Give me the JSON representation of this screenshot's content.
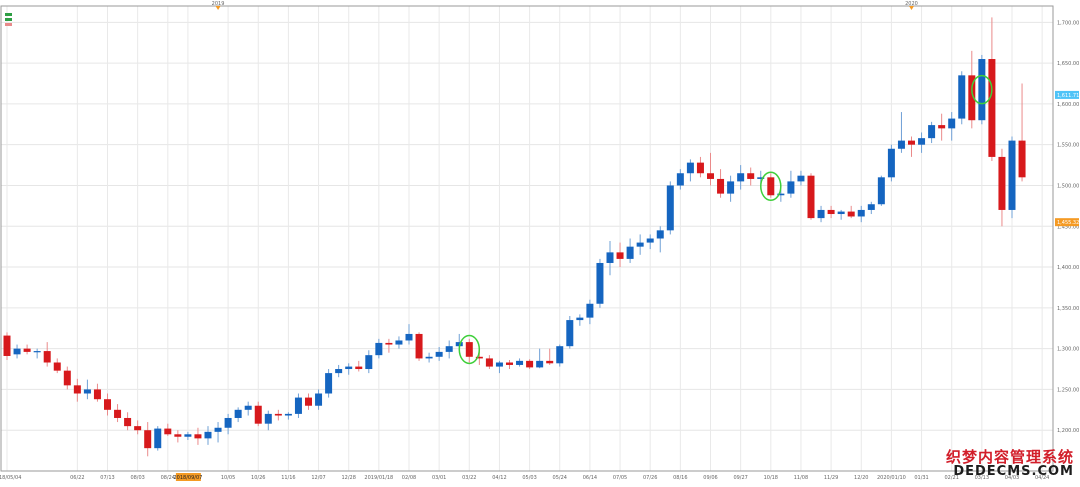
{
  "chart_data": {
    "type": "candlestick",
    "ylim": [
      1150,
      1720
    ],
    "y_ticks": [
      1200,
      1250,
      1300,
      1350,
      1400,
      1450,
      1500,
      1550,
      1600,
      1650,
      1700
    ],
    "y_tick_labels": [
      "1,200.00",
      "1,250.00",
      "1,300.00",
      "1,350.00",
      "1,400.00",
      "1,450.00",
      "1,500.00",
      "1,550.00",
      "1,600.00",
      "1,650.00",
      "1,700.00"
    ],
    "grid": true,
    "years": [
      {
        "label": "2019",
        "candle_index": 21
      },
      {
        "label": "2020",
        "candle_index": 90
      }
    ],
    "x_ticks": [
      {
        "label": "2018/05/04",
        "i": 0
      },
      {
        "label": "06/22",
        "i": 7
      },
      {
        "label": "07/13",
        "i": 10
      },
      {
        "label": "08/03",
        "i": 13
      },
      {
        "label": "08/24",
        "i": 16
      },
      {
        "label": "2018/09/07",
        "i": 18,
        "highlight": true
      },
      {
        "label": "10/05",
        "i": 22
      },
      {
        "label": "10/26",
        "i": 25
      },
      {
        "label": "11/16",
        "i": 28
      },
      {
        "label": "12/07",
        "i": 31
      },
      {
        "label": "12/28",
        "i": 34
      },
      {
        "label": "2019/01/18",
        "i": 37
      },
      {
        "label": "02/08",
        "i": 40
      },
      {
        "label": "03/01",
        "i": 43
      },
      {
        "label": "03/22",
        "i": 46
      },
      {
        "label": "04/12",
        "i": 49
      },
      {
        "label": "05/03",
        "i": 52
      },
      {
        "label": "05/24",
        "i": 55
      },
      {
        "label": "06/14",
        "i": 58
      },
      {
        "label": "07/05",
        "i": 61
      },
      {
        "label": "07/26",
        "i": 64
      },
      {
        "label": "08/16",
        "i": 67
      },
      {
        "label": "09/06",
        "i": 70
      },
      {
        "label": "09/27",
        "i": 73
      },
      {
        "label": "10/18",
        "i": 76
      },
      {
        "label": "11/08",
        "i": 79
      },
      {
        "label": "11/29",
        "i": 82
      },
      {
        "label": "12/20",
        "i": 85
      },
      {
        "label": "2020/01/10",
        "i": 88
      },
      {
        "label": "01/31",
        "i": 91
      },
      {
        "label": "02/21",
        "i": 94
      },
      {
        "label": "03/13",
        "i": 97
      },
      {
        "label": "04/03",
        "i": 100
      },
      {
        "label": "04/24",
        "i": 103
      }
    ],
    "price_tags": [
      {
        "label": "1,611.71",
        "value": 1611,
        "color": "#4fc3f7"
      },
      {
        "label": "1,455.32",
        "value": 1455,
        "color": "#f59a23"
      }
    ],
    "circled_candles": [
      46,
      76,
      97
    ],
    "colors": {
      "up": "#1565c0",
      "down": "#d7191c"
    },
    "candles": [
      [
        1316,
        1320,
        1286,
        1291
      ],
      [
        1293,
        1305,
        1288,
        1300
      ],
      [
        1300,
        1305,
        1293,
        1296
      ],
      [
        1296,
        1300,
        1288,
        1297
      ],
      [
        1297,
        1308,
        1278,
        1283
      ],
      [
        1283,
        1288,
        1270,
        1273
      ],
      [
        1273,
        1278,
        1250,
        1255
      ],
      [
        1255,
        1263,
        1235,
        1245
      ],
      [
        1245,
        1262,
        1238,
        1250
      ],
      [
        1250,
        1257,
        1235,
        1238
      ],
      [
        1238,
        1245,
        1218,
        1225
      ],
      [
        1225,
        1232,
        1210,
        1215
      ],
      [
        1215,
        1222,
        1200,
        1205
      ],
      [
        1205,
        1212,
        1195,
        1200
      ],
      [
        1200,
        1210,
        1168,
        1178
      ],
      [
        1178,
        1205,
        1175,
        1202
      ],
      [
        1202,
        1208,
        1193,
        1195
      ],
      [
        1195,
        1200,
        1185,
        1192
      ],
      [
        1192,
        1198,
        1188,
        1195
      ],
      [
        1195,
        1203,
        1182,
        1190
      ],
      [
        1190,
        1205,
        1182,
        1198
      ],
      [
        1198,
        1210,
        1185,
        1203
      ],
      [
        1203,
        1220,
        1195,
        1215
      ],
      [
        1215,
        1228,
        1210,
        1225
      ],
      [
        1225,
        1235,
        1218,
        1230
      ],
      [
        1230,
        1235,
        1205,
        1208
      ],
      [
        1208,
        1224,
        1200,
        1220
      ],
      [
        1220,
        1225,
        1212,
        1218
      ],
      [
        1218,
        1222,
        1213,
        1220
      ],
      [
        1220,
        1245,
        1215,
        1240
      ],
      [
        1240,
        1245,
        1225,
        1230
      ],
      [
        1230,
        1250,
        1225,
        1245
      ],
      [
        1245,
        1275,
        1240,
        1270
      ],
      [
        1270,
        1280,
        1265,
        1275
      ],
      [
        1275,
        1282,
        1268,
        1278
      ],
      [
        1278,
        1285,
        1272,
        1275
      ],
      [
        1275,
        1298,
        1270,
        1292
      ],
      [
        1292,
        1312,
        1288,
        1307
      ],
      [
        1307,
        1312,
        1295,
        1305
      ],
      [
        1305,
        1315,
        1300,
        1310
      ],
      [
        1310,
        1330,
        1305,
        1318
      ],
      [
        1318,
        1320,
        1285,
        1288
      ],
      [
        1288,
        1295,
        1283,
        1290
      ],
      [
        1290,
        1302,
        1285,
        1296
      ],
      [
        1296,
        1310,
        1288,
        1303
      ],
      [
        1303,
        1318,
        1298,
        1308
      ],
      [
        1308,
        1312,
        1283,
        1290
      ],
      [
        1290,
        1300,
        1280,
        1288
      ],
      [
        1288,
        1292,
        1275,
        1278
      ],
      [
        1278,
        1285,
        1270,
        1283
      ],
      [
        1283,
        1286,
        1275,
        1280
      ],
      [
        1280,
        1288,
        1278,
        1285
      ],
      [
        1285,
        1287,
        1275,
        1277
      ],
      [
        1277,
        1300,
        1276,
        1285
      ],
      [
        1285,
        1300,
        1280,
        1282
      ],
      [
        1282,
        1305,
        1278,
        1303
      ],
      [
        1303,
        1340,
        1300,
        1335
      ],
      [
        1335,
        1342,
        1328,
        1338
      ],
      [
        1338,
        1360,
        1330,
        1355
      ],
      [
        1355,
        1410,
        1350,
        1405
      ],
      [
        1405,
        1432,
        1390,
        1418
      ],
      [
        1418,
        1430,
        1400,
        1410
      ],
      [
        1410,
        1435,
        1405,
        1425
      ],
      [
        1425,
        1440,
        1415,
        1430
      ],
      [
        1430,
        1440,
        1422,
        1435
      ],
      [
        1435,
        1450,
        1418,
        1445
      ],
      [
        1445,
        1505,
        1440,
        1500
      ],
      [
        1500,
        1520,
        1495,
        1515
      ],
      [
        1515,
        1532,
        1505,
        1528
      ],
      [
        1528,
        1535,
        1510,
        1515
      ],
      [
        1515,
        1540,
        1500,
        1508
      ],
      [
        1508,
        1520,
        1485,
        1490
      ],
      [
        1490,
        1512,
        1480,
        1505
      ],
      [
        1505,
        1525,
        1495,
        1515
      ],
      [
        1515,
        1522,
        1500,
        1508
      ],
      [
        1508,
        1518,
        1495,
        1510
      ],
      [
        1510,
        1515,
        1485,
        1488
      ],
      [
        1488,
        1495,
        1480,
        1490
      ],
      [
        1490,
        1518,
        1485,
        1505
      ],
      [
        1505,
        1518,
        1500,
        1512
      ],
      [
        1512,
        1515,
        1458,
        1460
      ],
      [
        1460,
        1475,
        1455,
        1470
      ],
      [
        1470,
        1475,
        1460,
        1465
      ],
      [
        1465,
        1470,
        1458,
        1468
      ],
      [
        1468,
        1475,
        1460,
        1462
      ],
      [
        1462,
        1475,
        1455,
        1470
      ],
      [
        1470,
        1480,
        1465,
        1477
      ],
      [
        1477,
        1512,
        1475,
        1510
      ],
      [
        1510,
        1550,
        1505,
        1545
      ],
      [
        1545,
        1590,
        1540,
        1555
      ],
      [
        1555,
        1560,
        1535,
        1550
      ],
      [
        1550,
        1565,
        1540,
        1558
      ],
      [
        1558,
        1578,
        1552,
        1574
      ],
      [
        1574,
        1588,
        1555,
        1570
      ],
      [
        1570,
        1590,
        1555,
        1582
      ],
      [
        1582,
        1640,
        1575,
        1635
      ],
      [
        1635,
        1665,
        1570,
        1580
      ],
      [
        1580,
        1660,
        1575,
        1655
      ],
      [
        1655,
        1706,
        1530,
        1535
      ],
      [
        1535,
        1545,
        1450,
        1470
      ],
      [
        1470,
        1560,
        1460,
        1555
      ],
      [
        1555,
        1625,
        1505,
        1510
      ]
    ]
  },
  "branding": {
    "line1": "织梦内容管理系统",
    "line2": "DEDECMS.COM"
  }
}
